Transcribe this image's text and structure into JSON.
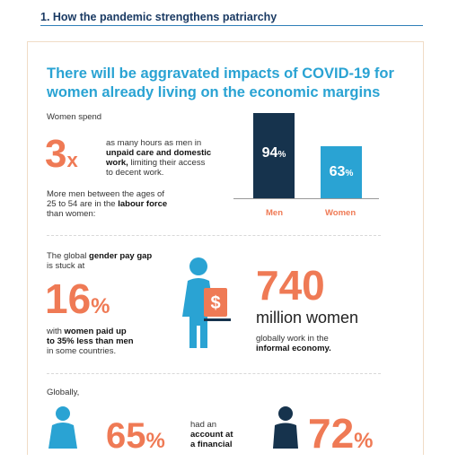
{
  "document": {
    "section_heading": "1. How the pandemic strengthens patriarchy"
  },
  "infographic": {
    "title_line1": "There will be aggravated impacts of COVID-19 for",
    "title_line2": "women already living on the economic margins",
    "care_work": {
      "intro": "Women spend",
      "multiplier": "3",
      "multiplier_suffix": "x",
      "desc_1": "as many hours as men in",
      "desc_2_bold": "unpaid care and domestic",
      "desc_3_bold": "work,",
      "desc_3_rest": " limiting their access",
      "desc_4": "to decent work."
    },
    "labour_force": {
      "line1": "More men between the ages of",
      "line2_pre": "25 to 54 are in the ",
      "line2_bold": "labour force",
      "line3": "than women:",
      "men_value": "94",
      "men_pct": "%",
      "men_label": "Men",
      "women_value": "63",
      "women_pct": "%",
      "women_label": "Women"
    },
    "pay_gap": {
      "line1": "The global ",
      "line1_bold": "gender pay gap",
      "line2": "is stuck at",
      "value": "16",
      "pct": "%",
      "desc_1_pre": "with ",
      "desc_1_bold": "women paid up",
      "desc_2_bold": "to 35% less than men",
      "desc_3": "in some countries.",
      "currency_symbol": "$"
    },
    "informal_economy": {
      "value": "740",
      "unit": "million women",
      "desc_1": "globally work in the",
      "desc_2_bold": "informal economy."
    },
    "accounts": {
      "intro": "Globally,",
      "women_value": "65",
      "women_pct": "%",
      "desc_1": "had an",
      "desc_2_bold": "account at",
      "desc_3_bold": "a financial",
      "men_value": "72",
      "men_pct": "%"
    }
  },
  "colors": {
    "orange": "#ef7a55",
    "navy": "#16334d",
    "blue": "#2aa3d3"
  }
}
